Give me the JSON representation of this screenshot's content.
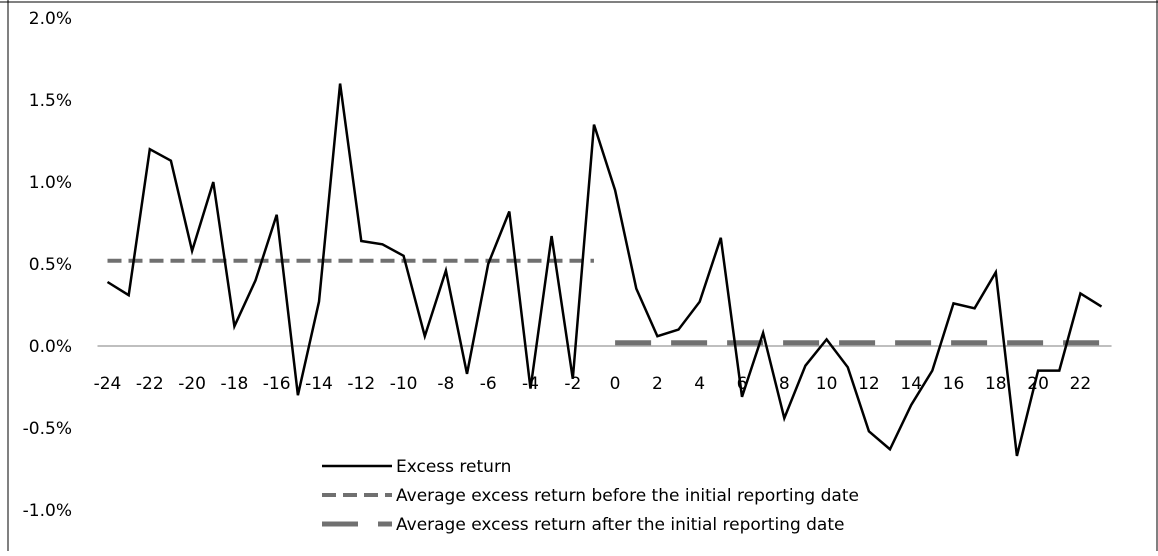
{
  "chart_data": {
    "type": "line",
    "title": "",
    "xlabel": "",
    "ylabel": "",
    "xlim": [
      -24,
      23
    ],
    "ylim": [
      -0.01,
      0.02
    ],
    "y_tick_labels": [
      "2.0%",
      "1.5%",
      "1.0%",
      "0.5%",
      "0.0%",
      "-0.5%",
      "-1.0%"
    ],
    "y_tick_values": [
      0.02,
      0.015,
      0.01,
      0.005,
      0.0,
      -0.005,
      -0.01
    ],
    "x_tick_labels": [
      "-24",
      "-22",
      "-20",
      "-18",
      "-16",
      "-14",
      "-12",
      "-10",
      "-8",
      "-6",
      "-4",
      "-2",
      "0",
      "2",
      "4",
      "6",
      "8",
      "10",
      "12",
      "14",
      "16",
      "18",
      "20",
      "22"
    ],
    "x_tick_values": [
      -24,
      -22,
      -20,
      -18,
      -16,
      -14,
      -12,
      -10,
      -8,
      -6,
      -4,
      -2,
      0,
      2,
      4,
      6,
      8,
      10,
      12,
      14,
      16,
      18,
      20,
      22
    ],
    "grid": false,
    "legend_position": "bottom-center",
    "x": [
      -24,
      -23,
      -22,
      -21,
      -20,
      -19,
      -18,
      -17,
      -16,
      -15,
      -14,
      -13,
      -12,
      -11,
      -10,
      -9,
      -8,
      -7,
      -6,
      -5,
      -4,
      -3,
      -2,
      -1,
      0,
      1,
      2,
      3,
      4,
      5,
      6,
      7,
      8,
      9,
      10,
      11,
      12,
      13,
      14,
      15,
      16,
      17,
      18,
      19,
      20,
      21,
      22,
      23
    ],
    "series": [
      {
        "name": "Excess return",
        "style": "solid",
        "color": "#000000",
        "values": [
          0.0039,
          0.0031,
          0.012,
          0.0113,
          0.0058,
          0.01,
          0.0012,
          0.004,
          0.008,
          -0.003,
          0.0027,
          0.016,
          0.0064,
          0.0062,
          0.0055,
          0.0006,
          0.0046,
          -0.0017,
          0.005,
          0.0082,
          -0.0026,
          0.0067,
          -0.002,
          0.0135,
          0.0095,
          0.0035,
          0.0006,
          0.001,
          0.0027,
          0.0066,
          -0.0031,
          0.0008,
          -0.0044,
          -0.0012,
          0.0004,
          -0.0013,
          -0.0052,
          -0.0063,
          -0.0036,
          -0.0015,
          0.0026,
          0.0023,
          0.0045,
          -0.0067,
          -0.0015,
          -0.0015,
          0.0032,
          0.0024
        ]
      },
      {
        "name": "Average excess return before the initial reporting date",
        "style": "short-dash",
        "color": "#707070",
        "x_range": [
          -24,
          -1
        ],
        "value": 0.0052
      },
      {
        "name": "Average excess return after the initial reporting date",
        "style": "long-dash",
        "color": "#707070",
        "x_range": [
          0,
          23
        ],
        "value": 0.0002
      }
    ]
  }
}
